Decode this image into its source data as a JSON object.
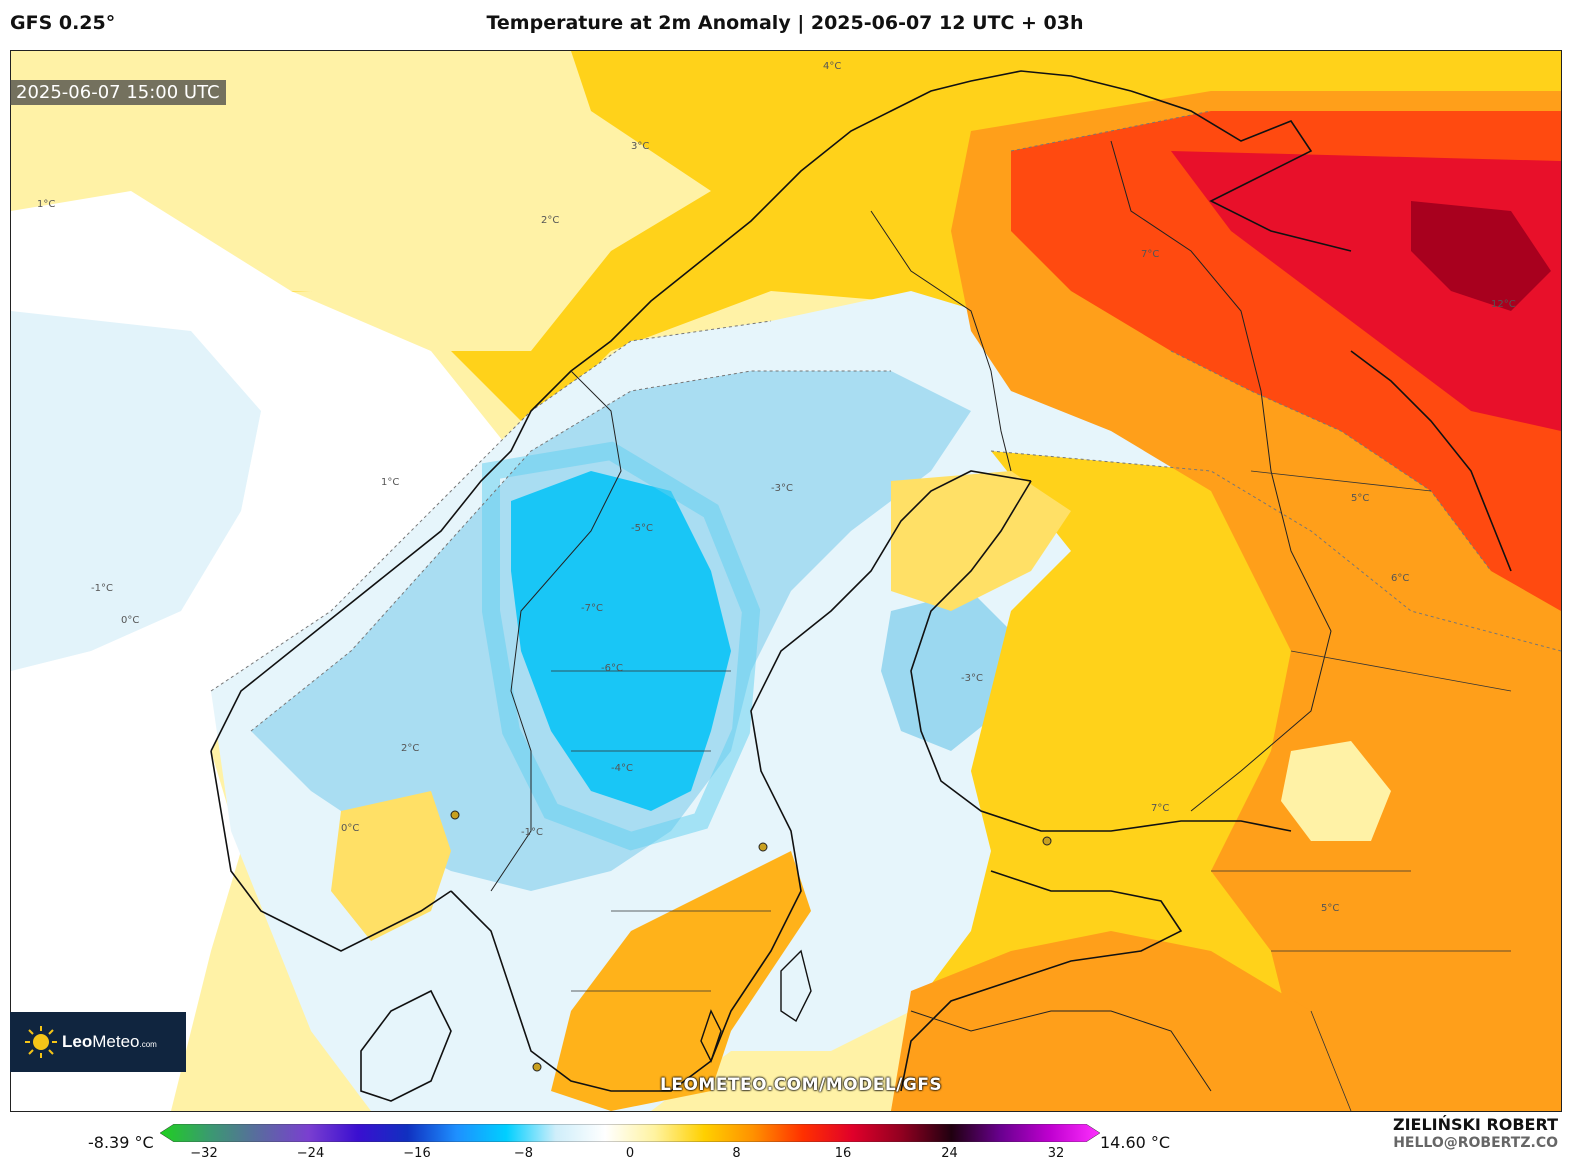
{
  "header": {
    "model": "GFS 0.25°",
    "title": "Temperature at 2m Anomaly | 2025-06-07 12 UTC + 03h"
  },
  "map": {
    "valid_time": "2025-06-07 15:00 UTC",
    "region": "Scandinavia / Baltic / NW Russia",
    "contour_labels": [
      "4°C",
      "3°C",
      "2°C",
      "1°C",
      "0°C",
      "-1°C",
      "-3°C",
      "-5°C",
      "-6°C",
      "-7°C",
      "5°C",
      "6°C",
      "7°C",
      "12°C",
      "2°C",
      "1°C",
      "0°C",
      "-1°C",
      "-4°C",
      "-3°C",
      "5°C",
      "7°C"
    ]
  },
  "branding": {
    "logo_text_bold": "Leo",
    "logo_text_rest": "Meteo",
    "logo_suffix": ".com",
    "watermark": "LEOMETEO.COM/MODEL/GFS",
    "author": "ZIELIŃSKI ROBERT",
    "email": "HELLO@ROBERTZ.CO"
  },
  "colorbar": {
    "min_label": "-8.39 °C",
    "max_label": "14.60 °C",
    "ticks": [
      "−32",
      "−24",
      "−16",
      "−8",
      "0",
      "8",
      "16",
      "24",
      "32"
    ],
    "range": [
      -32,
      32
    ],
    "stops": [
      "#1fd01f",
      "#3a9a70",
      "#5a6aa0",
      "#7a3fd0",
      "#3a0fd0",
      "#1030c0",
      "#1e90ff",
      "#00cfff",
      "#cfeefa",
      "#ffffff",
      "#fff3a0",
      "#ffd000",
      "#ff9000",
      "#ff3000",
      "#e0002a",
      "#900020",
      "#200010",
      "#6a0090",
      "#c000d0",
      "#ff30ff"
    ]
  },
  "colors": {
    "cold_core": "#18c8f8",
    "cold_mid": "#8fd6f0",
    "cold_light": "#d8f0f8",
    "neutral": "#ffffff",
    "warm_light": "#fff2a6",
    "warm_yellow": "#ffd21a",
    "warm_orange": "#ff9f1a",
    "hot_red": "#ff4a10",
    "hot_crimson": "#e8102a",
    "hot_dark": "#a8001e"
  }
}
